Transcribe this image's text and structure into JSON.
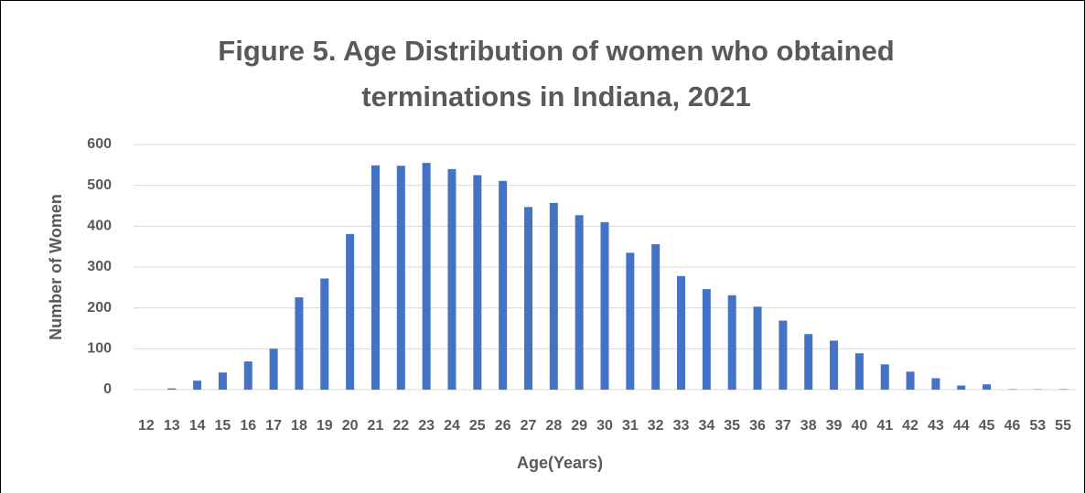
{
  "chart_data": {
    "type": "bar",
    "title": [
      "Figure 5. Age Distribution of women who obtained",
      "terminations in Indiana, 2021"
    ],
    "xlabel": "Age(Years)",
    "ylabel": "Number of Women",
    "categories": [
      "12",
      "13",
      "14",
      "15",
      "16",
      "17",
      "18",
      "19",
      "20",
      "21",
      "22",
      "23",
      "24",
      "25",
      "26",
      "27",
      "28",
      "29",
      "30",
      "31",
      "32",
      "33",
      "34",
      "35",
      "36",
      "37",
      "38",
      "39",
      "40",
      "41",
      "42",
      "43",
      "44",
      "45",
      "46",
      "53",
      "55"
    ],
    "values": [
      0,
      3,
      22,
      42,
      69,
      100,
      226,
      272,
      381,
      549,
      548,
      555,
      540,
      525,
      511,
      447,
      457,
      427,
      410,
      335,
      356,
      278,
      246,
      231,
      203,
      169,
      136,
      120,
      89,
      62,
      44,
      28,
      10,
      13,
      1,
      1,
      1
    ],
    "color": "#4472c4",
    "ylim": [
      0,
      600
    ],
    "yticks": [
      0,
      100,
      200,
      300,
      400,
      500,
      600
    ],
    "grid": true
  }
}
